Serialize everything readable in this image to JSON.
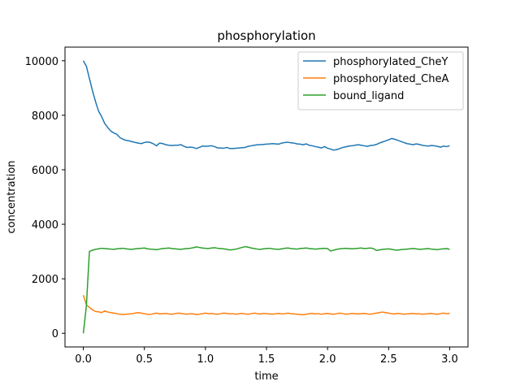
{
  "chart_data": {
    "type": "line",
    "title": "phosphorylation",
    "xlabel": "time",
    "ylabel": "concentration",
    "xlim": [
      -0.15,
      3.15
    ],
    "ylim": [
      -500,
      10500
    ],
    "xticks": [
      0.0,
      0.5,
      1.0,
      1.5,
      2.0,
      2.5,
      3.0
    ],
    "xtick_labels": [
      "0.0",
      "0.5",
      "1.0",
      "1.5",
      "2.0",
      "2.5",
      "3.0"
    ],
    "yticks": [
      0,
      2000,
      4000,
      6000,
      8000,
      10000
    ],
    "ytick_labels": [
      "0",
      "2000",
      "4000",
      "6000",
      "8000",
      "10000"
    ],
    "grid": false,
    "legend_position": "top-right",
    "x": [
      0.0,
      0.025,
      0.05,
      0.075,
      0.1,
      0.125,
      0.15,
      0.175,
      0.2,
      0.225,
      0.25,
      0.275,
      0.3,
      0.325,
      0.35,
      0.375,
      0.4,
      0.425,
      0.45,
      0.475,
      0.5,
      0.525,
      0.55,
      0.575,
      0.6,
      0.625,
      0.65,
      0.675,
      0.7,
      0.725,
      0.75,
      0.775,
      0.8,
      0.825,
      0.85,
      0.875,
      0.9,
      0.925,
      0.95,
      0.975,
      1.0,
      1.025,
      1.05,
      1.075,
      1.1,
      1.125,
      1.15,
      1.175,
      1.2,
      1.225,
      1.25,
      1.275,
      1.3,
      1.325,
      1.35,
      1.375,
      1.4,
      1.425,
      1.45,
      1.475,
      1.5,
      1.525,
      1.55,
      1.575,
      1.6,
      1.625,
      1.65,
      1.675,
      1.7,
      1.725,
      1.75,
      1.775,
      1.8,
      1.825,
      1.85,
      1.875,
      1.9,
      1.925,
      1.95,
      1.975,
      2.0,
      2.025,
      2.05,
      2.075,
      2.1,
      2.125,
      2.15,
      2.175,
      2.2,
      2.225,
      2.25,
      2.275,
      2.3,
      2.325,
      2.35,
      2.375,
      2.4,
      2.425,
      2.45,
      2.475,
      2.5,
      2.525,
      2.55,
      2.575,
      2.6,
      2.625,
      2.65,
      2.675,
      2.7,
      2.725,
      2.75,
      2.775,
      2.8,
      2.825,
      2.85,
      2.875,
      2.9,
      2.925,
      2.95,
      2.975,
      3.0
    ],
    "series": [
      {
        "name": "phosphorylated_CheY",
        "color": "#1f77b4",
        "values": [
          10000,
          9800,
          9350,
          8900,
          8500,
          8150,
          7950,
          7700,
          7550,
          7420,
          7350,
          7300,
          7180,
          7120,
          7080,
          7060,
          7030,
          7000,
          6980,
          6960,
          7000,
          7020,
          7000,
          6950,
          6880,
          6980,
          6960,
          6920,
          6900,
          6890,
          6900,
          6900,
          6920,
          6860,
          6820,
          6830,
          6820,
          6780,
          6820,
          6870,
          6860,
          6870,
          6880,
          6850,
          6800,
          6800,
          6790,
          6820,
          6780,
          6780,
          6790,
          6800,
          6810,
          6820,
          6860,
          6880,
          6900,
          6920,
          6920,
          6930,
          6940,
          6950,
          6960,
          6950,
          6940,
          6980,
          7000,
          7010,
          6990,
          6980,
          6950,
          6940,
          6920,
          6950,
          6900,
          6880,
          6850,
          6830,
          6800,
          6850,
          6790,
          6760,
          6720,
          6740,
          6780,
          6820,
          6840,
          6870,
          6880,
          6900,
          6920,
          6900,
          6880,
          6860,
          6890,
          6900,
          6930,
          6980,
          7020,
          7060,
          7100,
          7150,
          7120,
          7080,
          7040,
          7000,
          6960,
          6940,
          6920,
          6950,
          6930,
          6900,
          6880,
          6870,
          6890,
          6880,
          6860,
          6830,
          6870,
          6850,
          6880
        ]
      },
      {
        "name": "phosphorylated_CheA",
        "color": "#ff7f0e",
        "values": [
          1400,
          1050,
          950,
          860,
          800,
          790,
          760,
          820,
          780,
          760,
          740,
          720,
          700,
          690,
          700,
          710,
          720,
          740,
          760,
          740,
          720,
          700,
          690,
          720,
          740,
          710,
          720,
          730,
          710,
          700,
          720,
          740,
          730,
          710,
          700,
          720,
          710,
          690,
          700,
          720,
          740,
          720,
          730,
          710,
          700,
          720,
          740,
          730,
          710,
          720,
          700,
          720,
          730,
          710,
          700,
          720,
          740,
          720,
          710,
          730,
          720,
          710,
          700,
          720,
          730,
          710,
          720,
          740,
          720,
          710,
          700,
          690,
          680,
          700,
          720,
          730,
          710,
          720,
          700,
          720,
          730,
          710,
          700,
          720,
          740,
          720,
          700,
          710,
          730,
          720,
          710,
          720,
          730,
          710,
          700,
          720,
          740,
          760,
          780,
          760,
          740,
          720,
          710,
          730,
          720,
          700,
          710,
          720,
          730,
          710,
          720,
          700,
          710,
          720,
          730,
          710,
          700,
          720,
          740,
          720,
          730
        ]
      },
      {
        "name": "bound_ligand",
        "color": "#2ca02c",
        "values": [
          0,
          1000,
          3000,
          3050,
          3080,
          3100,
          3120,
          3110,
          3100,
          3090,
          3080,
          3100,
          3110,
          3120,
          3100,
          3090,
          3080,
          3100,
          3110,
          3120,
          3130,
          3100,
          3090,
          3080,
          3070,
          3090,
          3110,
          3120,
          3130,
          3110,
          3100,
          3090,
          3080,
          3100,
          3110,
          3120,
          3140,
          3170,
          3150,
          3130,
          3120,
          3110,
          3130,
          3140,
          3120,
          3110,
          3100,
          3080,
          3060,
          3070,
          3090,
          3120,
          3150,
          3180,
          3160,
          3130,
          3110,
          3090,
          3080,
          3100,
          3110,
          3120,
          3100,
          3090,
          3080,
          3100,
          3120,
          3130,
          3110,
          3100,
          3090,
          3110,
          3120,
          3130,
          3110,
          3100,
          3090,
          3100,
          3110,
          3120,
          3110,
          3020,
          3050,
          3080,
          3100,
          3110,
          3120,
          3110,
          3100,
          3110,
          3120,
          3130,
          3110,
          3120,
          3130,
          3110,
          3040,
          3060,
          3080,
          3090,
          3100,
          3080,
          3060,
          3050,
          3070,
          3080,
          3090,
          3100,
          3110,
          3100,
          3080,
          3090,
          3100,
          3110,
          3090,
          3080,
          3070,
          3090,
          3100,
          3110,
          3080
        ]
      }
    ]
  }
}
